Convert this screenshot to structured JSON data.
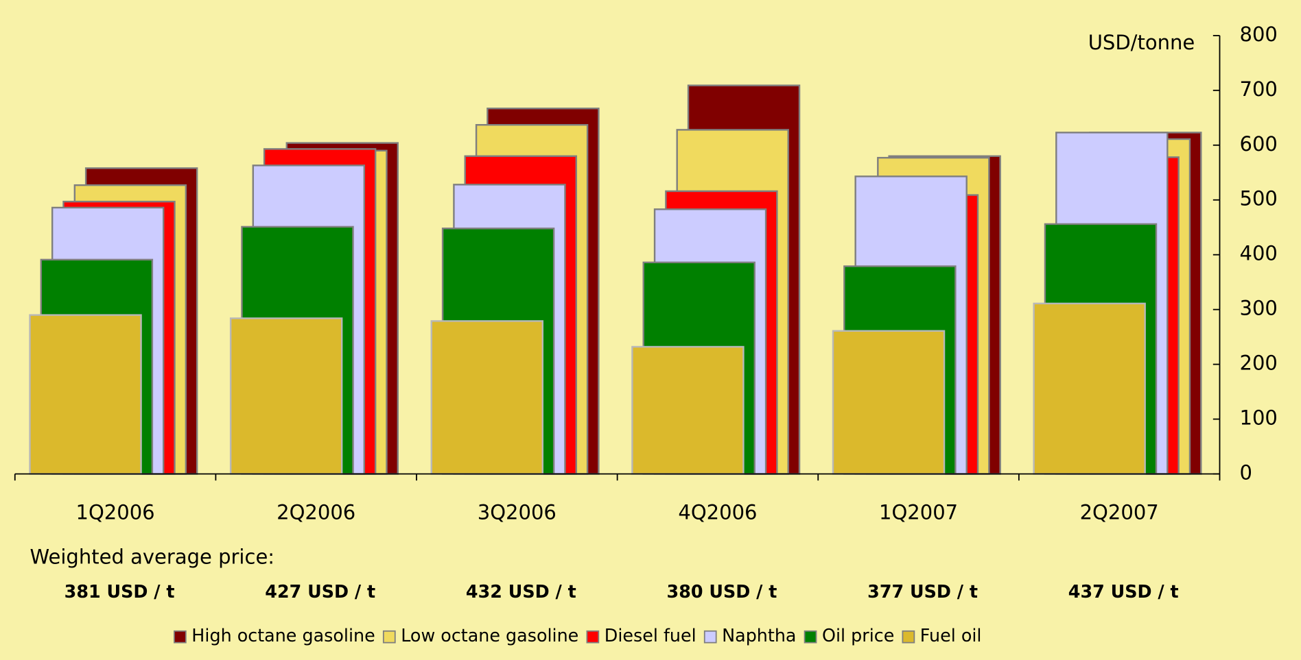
{
  "chart_data": {
    "type": "bar",
    "categories": [
      "1Q2006",
      "2Q2006",
      "3Q2006",
      "4Q2006",
      "1Q2007",
      "2Q2007"
    ],
    "series": [
      {
        "name": "High octane gasoline",
        "color": "#800000",
        "values": [
          558,
          604,
          667,
          709,
          580,
          623
        ]
      },
      {
        "name": "Low octane gasoline",
        "color": "#f0da5e",
        "values": [
          527,
          590,
          637,
          628,
          577,
          611
        ]
      },
      {
        "name": "Diesel fuel",
        "color": "#ff0000",
        "values": [
          497,
          593,
          580,
          516,
          509,
          578
        ]
      },
      {
        "name": "Naphtha",
        "color": "#ccccff",
        "values": [
          486,
          563,
          528,
          483,
          543,
          623
        ]
      },
      {
        "name": "Oil price",
        "color": "#008000",
        "values": [
          391,
          451,
          448,
          386,
          379,
          456
        ]
      },
      {
        "name": "Fuel oil",
        "color": "#dbb92c",
        "values": [
          290,
          284,
          279,
          232,
          261,
          311
        ]
      }
    ],
    "y_axis_label": "USD/tonne",
    "ylim": [
      0,
      800
    ],
    "yticks": [
      0,
      100,
      200,
      300,
      400,
      500,
      600,
      700,
      800
    ],
    "annotation_title": "Weighted average price:",
    "annotations": [
      "381 USD / t",
      "427 USD / t",
      "432 USD / t",
      "380 USD / t",
      "377 USD / t",
      "437 USD / t"
    ],
    "legend": "bottom"
  }
}
